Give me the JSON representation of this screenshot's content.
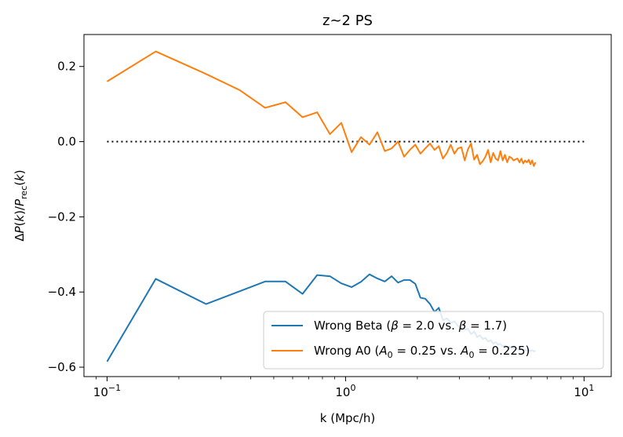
{
  "chart_data": {
    "type": "line",
    "title": "z~2 PS",
    "xlabel": "k (Mpc/h)",
    "ylabel": "ΔP(k)/P_rec(k)",
    "xscale": "log",
    "xlim": [
      0.08,
      13
    ],
    "ylim": [
      -0.625,
      0.285
    ],
    "x_ticks": [
      {
        "value": 0.1,
        "base": "10",
        "exp": "−1"
      },
      {
        "value": 1,
        "base": "10",
        "exp": "0"
      },
      {
        "value": 10,
        "base": "10",
        "exp": "1"
      }
    ],
    "y_ticks": [
      {
        "value": 0.2,
        "label": "0.2"
      },
      {
        "value": 0.0,
        "label": "0.0"
      },
      {
        "value": -0.2,
        "label": "−0.2"
      },
      {
        "value": -0.4,
        "label": "−0.4"
      },
      {
        "value": -0.6,
        "label": "−0.6"
      }
    ],
    "grid": false,
    "legend_position": "lower-right",
    "reference_line": {
      "y": 0.0,
      "x": [
        0.1,
        10
      ],
      "style": "dotted",
      "color": "#000000"
    },
    "series": [
      {
        "name_parts": {
          "prefix": "Wrong Beta (",
          "sym1": "β",
          "eq1": " = 2.0 vs. ",
          "sym2": "β",
          "eq2": " = 1.7)"
        },
        "color": "#1f77b4",
        "x": [
          0.1,
          0.16,
          0.26,
          0.36,
          0.46,
          0.56,
          0.66,
          0.76,
          0.86,
          0.96,
          1.06,
          1.16,
          1.26,
          1.36,
          1.46,
          1.56,
          1.66,
          1.76,
          1.86,
          1.96,
          2.06,
          2.16,
          2.26,
          2.36,
          2.46,
          2.56,
          2.66,
          2.76,
          2.86,
          2.96,
          3.06,
          3.16,
          3.26,
          3.36,
          3.46,
          3.56,
          3.66,
          3.76,
          3.86,
          3.96,
          4.06,
          4.16,
          4.26,
          4.36,
          4.46,
          4.56,
          4.66,
          4.76,
          4.86,
          4.96,
          5.06,
          5.16,
          5.26,
          5.36,
          5.46,
          5.56,
          5.66,
          5.76,
          5.86,
          5.96,
          6.06,
          6.16,
          6.26
        ],
        "y": [
          -0.585,
          -0.365,
          -0.432,
          -0.398,
          -0.372,
          -0.372,
          -0.405,
          -0.355,
          -0.358,
          -0.377,
          -0.387,
          -0.373,
          -0.353,
          -0.364,
          -0.372,
          -0.358,
          -0.375,
          -0.368,
          -0.368,
          -0.378,
          -0.415,
          -0.418,
          -0.432,
          -0.453,
          -0.442,
          -0.475,
          -0.47,
          -0.482,
          -0.478,
          -0.49,
          -0.495,
          -0.5,
          -0.498,
          -0.512,
          -0.505,
          -0.52,
          -0.515,
          -0.525,
          -0.522,
          -0.532,
          -0.528,
          -0.538,
          -0.533,
          -0.54,
          -0.538,
          -0.545,
          -0.542,
          -0.548,
          -0.545,
          -0.55,
          -0.548,
          -0.552,
          -0.55,
          -0.553,
          -0.552,
          -0.555,
          -0.553,
          -0.556,
          -0.555,
          -0.557,
          -0.555,
          -0.558,
          -0.556
        ]
      },
      {
        "name_parts": {
          "prefix": "Wrong A0 (",
          "sym1": "A",
          "sub1": "0",
          "eq1": " = 0.25 vs. ",
          "sym2": "A",
          "sub2": "0",
          "eq2": " = 0.225)"
        },
        "color": "#ff7f0e",
        "x": [
          0.1,
          0.16,
          0.26,
          0.36,
          0.46,
          0.56,
          0.66,
          0.76,
          0.86,
          0.96,
          1.06,
          1.16,
          1.26,
          1.36,
          1.46,
          1.56,
          1.66,
          1.76,
          1.86,
          1.96,
          2.06,
          2.16,
          2.26,
          2.36,
          2.46,
          2.56,
          2.66,
          2.76,
          2.86,
          2.96,
          3.06,
          3.16,
          3.26,
          3.36,
          3.46,
          3.56,
          3.66,
          3.76,
          3.86,
          3.96,
          4.06,
          4.16,
          4.26,
          4.36,
          4.46,
          4.56,
          4.66,
          4.76,
          4.86,
          4.96,
          5.06,
          5.16,
          5.26,
          5.36,
          5.46,
          5.56,
          5.66,
          5.76,
          5.86,
          5.96,
          6.06,
          6.16,
          6.26
        ],
        "y": [
          0.16,
          0.24,
          0.18,
          0.137,
          0.09,
          0.105,
          0.065,
          0.078,
          0.02,
          0.05,
          -0.028,
          0.012,
          -0.008,
          0.025,
          -0.025,
          -0.018,
          0.0,
          -0.04,
          -0.022,
          -0.008,
          -0.032,
          -0.018,
          -0.005,
          -0.022,
          -0.012,
          -0.045,
          -0.03,
          -0.008,
          -0.032,
          -0.018,
          -0.015,
          -0.05,
          -0.02,
          -0.005,
          -0.048,
          -0.035,
          -0.06,
          -0.052,
          -0.04,
          -0.022,
          -0.055,
          -0.03,
          -0.045,
          -0.05,
          -0.025,
          -0.05,
          -0.035,
          -0.055,
          -0.04,
          -0.043,
          -0.05,
          -0.047,
          -0.045,
          -0.055,
          -0.045,
          -0.058,
          -0.05,
          -0.055,
          -0.048,
          -0.06,
          -0.05,
          -0.065,
          -0.055
        ]
      }
    ]
  }
}
